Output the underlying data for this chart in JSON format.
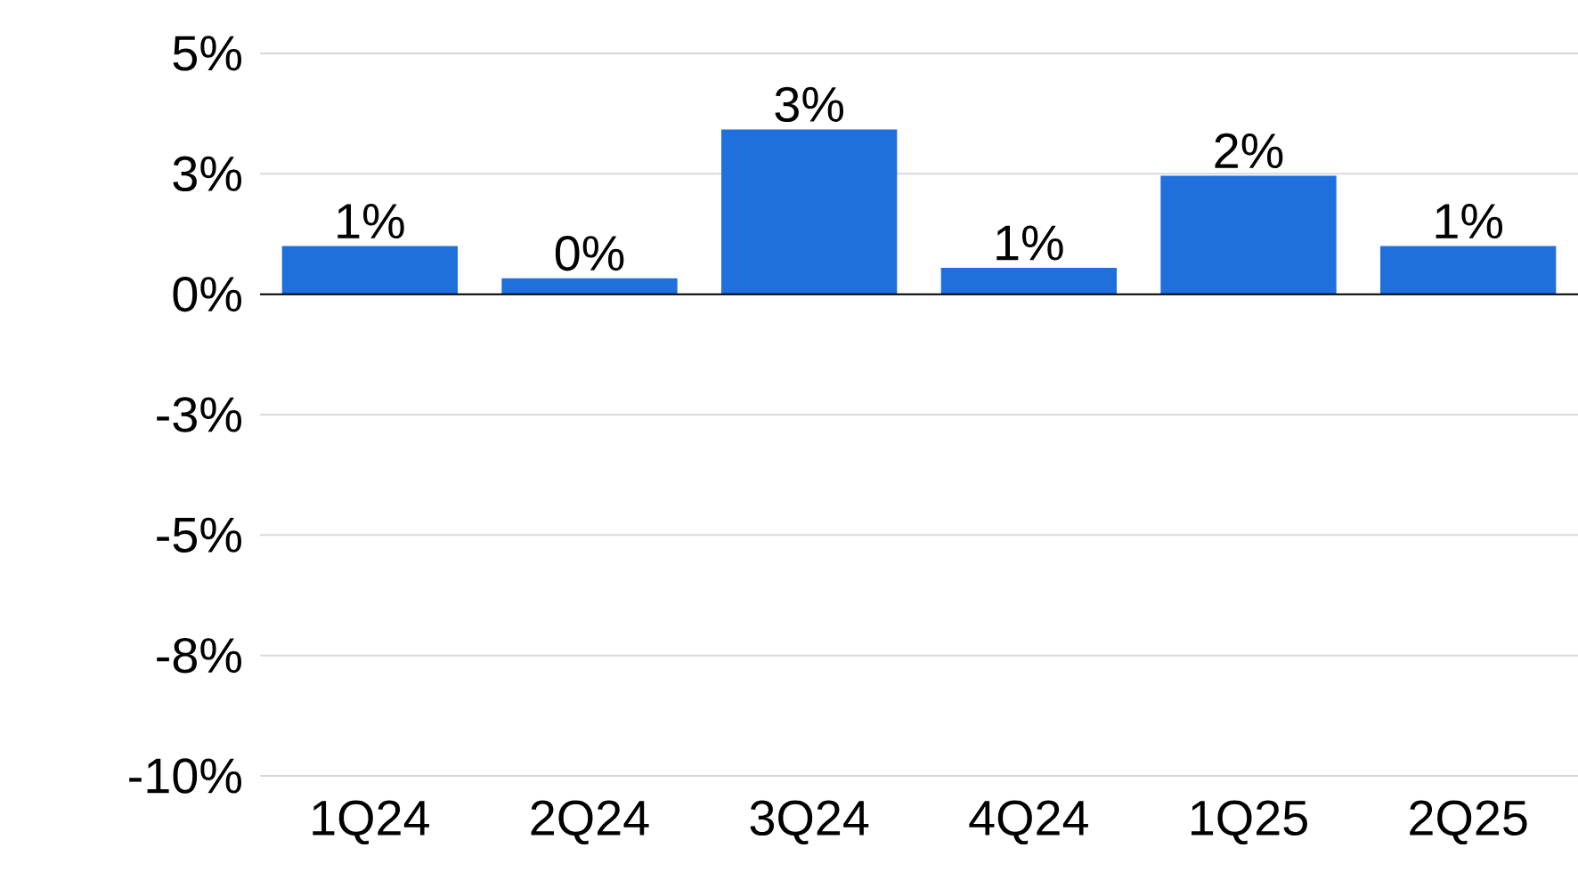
{
  "chart_data": {
    "type": "bar",
    "categories": [
      "1Q24",
      "2Q24",
      "3Q24",
      "4Q24",
      "1Q25",
      "2Q25"
    ],
    "values": [
      1.0,
      0.33,
      3.42,
      0.55,
      2.46,
      1.0
    ],
    "value_labels": [
      "1%",
      "0%",
      "3%",
      "1%",
      "2%",
      "1%"
    ],
    "color": "#1f6fdc",
    "ylim": [
      -10,
      5
    ],
    "yticks": [
      {
        "value": -10,
        "label": "-10%"
      },
      {
        "value": -7.5,
        "label": "-8%"
      },
      {
        "value": -5,
        "label": "-5%"
      },
      {
        "value": -2.5,
        "label": "-3%"
      },
      {
        "value": 0,
        "label": "0%"
      },
      {
        "value": 2.5,
        "label": "3%"
      },
      {
        "value": 5,
        "label": "5%"
      }
    ],
    "grid": "y"
  }
}
